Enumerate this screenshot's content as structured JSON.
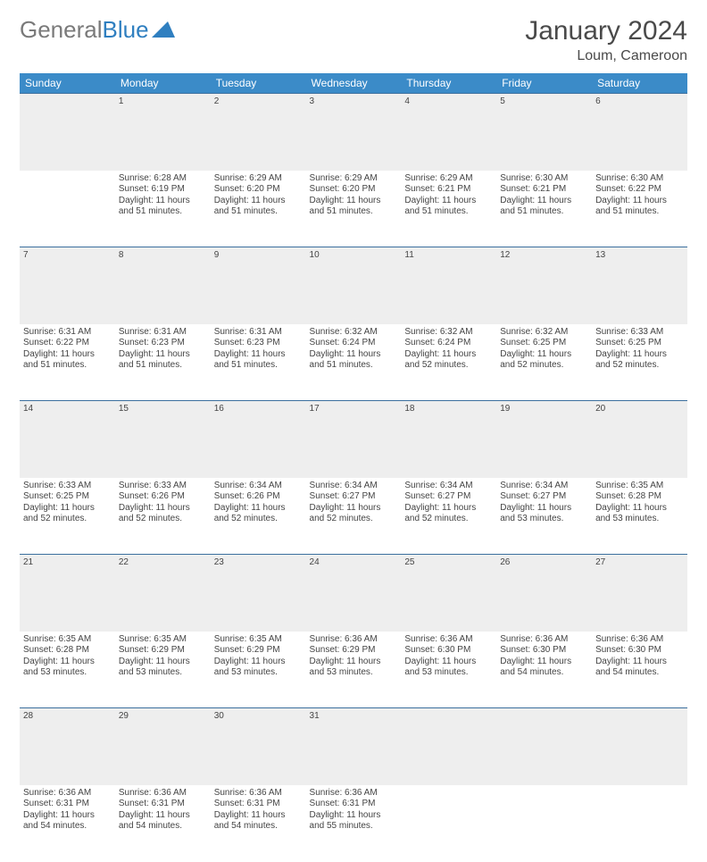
{
  "logo": {
    "text1": "General",
    "text2": "Blue"
  },
  "title": "January 2024",
  "location": "Loum, Cameroon",
  "colors": {
    "header_bg": "#3b8bc8",
    "header_text": "#ffffff",
    "daynum_bg": "#eeeeee",
    "border": "#3b6f9e",
    "logo_gray": "#7a7a7a",
    "logo_blue": "#2f7fc0"
  },
  "weekdays": [
    "Sunday",
    "Monday",
    "Tuesday",
    "Wednesday",
    "Thursday",
    "Friday",
    "Saturday"
  ],
  "weeks": [
    {
      "nums": [
        "",
        "1",
        "2",
        "3",
        "4",
        "5",
        "6"
      ],
      "cells": [
        null,
        {
          "sunrise": "Sunrise: 6:28 AM",
          "sunset": "Sunset: 6:19 PM",
          "d1": "Daylight: 11 hours",
          "d2": "and 51 minutes."
        },
        {
          "sunrise": "Sunrise: 6:29 AM",
          "sunset": "Sunset: 6:20 PM",
          "d1": "Daylight: 11 hours",
          "d2": "and 51 minutes."
        },
        {
          "sunrise": "Sunrise: 6:29 AM",
          "sunset": "Sunset: 6:20 PM",
          "d1": "Daylight: 11 hours",
          "d2": "and 51 minutes."
        },
        {
          "sunrise": "Sunrise: 6:29 AM",
          "sunset": "Sunset: 6:21 PM",
          "d1": "Daylight: 11 hours",
          "d2": "and 51 minutes."
        },
        {
          "sunrise": "Sunrise: 6:30 AM",
          "sunset": "Sunset: 6:21 PM",
          "d1": "Daylight: 11 hours",
          "d2": "and 51 minutes."
        },
        {
          "sunrise": "Sunrise: 6:30 AM",
          "sunset": "Sunset: 6:22 PM",
          "d1": "Daylight: 11 hours",
          "d2": "and 51 minutes."
        }
      ]
    },
    {
      "nums": [
        "7",
        "8",
        "9",
        "10",
        "11",
        "12",
        "13"
      ],
      "cells": [
        {
          "sunrise": "Sunrise: 6:31 AM",
          "sunset": "Sunset: 6:22 PM",
          "d1": "Daylight: 11 hours",
          "d2": "and 51 minutes."
        },
        {
          "sunrise": "Sunrise: 6:31 AM",
          "sunset": "Sunset: 6:23 PM",
          "d1": "Daylight: 11 hours",
          "d2": "and 51 minutes."
        },
        {
          "sunrise": "Sunrise: 6:31 AM",
          "sunset": "Sunset: 6:23 PM",
          "d1": "Daylight: 11 hours",
          "d2": "and 51 minutes."
        },
        {
          "sunrise": "Sunrise: 6:32 AM",
          "sunset": "Sunset: 6:24 PM",
          "d1": "Daylight: 11 hours",
          "d2": "and 51 minutes."
        },
        {
          "sunrise": "Sunrise: 6:32 AM",
          "sunset": "Sunset: 6:24 PM",
          "d1": "Daylight: 11 hours",
          "d2": "and 52 minutes."
        },
        {
          "sunrise": "Sunrise: 6:32 AM",
          "sunset": "Sunset: 6:25 PM",
          "d1": "Daylight: 11 hours",
          "d2": "and 52 minutes."
        },
        {
          "sunrise": "Sunrise: 6:33 AM",
          "sunset": "Sunset: 6:25 PM",
          "d1": "Daylight: 11 hours",
          "d2": "and 52 minutes."
        }
      ]
    },
    {
      "nums": [
        "14",
        "15",
        "16",
        "17",
        "18",
        "19",
        "20"
      ],
      "cells": [
        {
          "sunrise": "Sunrise: 6:33 AM",
          "sunset": "Sunset: 6:25 PM",
          "d1": "Daylight: 11 hours",
          "d2": "and 52 minutes."
        },
        {
          "sunrise": "Sunrise: 6:33 AM",
          "sunset": "Sunset: 6:26 PM",
          "d1": "Daylight: 11 hours",
          "d2": "and 52 minutes."
        },
        {
          "sunrise": "Sunrise: 6:34 AM",
          "sunset": "Sunset: 6:26 PM",
          "d1": "Daylight: 11 hours",
          "d2": "and 52 minutes."
        },
        {
          "sunrise": "Sunrise: 6:34 AM",
          "sunset": "Sunset: 6:27 PM",
          "d1": "Daylight: 11 hours",
          "d2": "and 52 minutes."
        },
        {
          "sunrise": "Sunrise: 6:34 AM",
          "sunset": "Sunset: 6:27 PM",
          "d1": "Daylight: 11 hours",
          "d2": "and 52 minutes."
        },
        {
          "sunrise": "Sunrise: 6:34 AM",
          "sunset": "Sunset: 6:27 PM",
          "d1": "Daylight: 11 hours",
          "d2": "and 53 minutes."
        },
        {
          "sunrise": "Sunrise: 6:35 AM",
          "sunset": "Sunset: 6:28 PM",
          "d1": "Daylight: 11 hours",
          "d2": "and 53 minutes."
        }
      ]
    },
    {
      "nums": [
        "21",
        "22",
        "23",
        "24",
        "25",
        "26",
        "27"
      ],
      "cells": [
        {
          "sunrise": "Sunrise: 6:35 AM",
          "sunset": "Sunset: 6:28 PM",
          "d1": "Daylight: 11 hours",
          "d2": "and 53 minutes."
        },
        {
          "sunrise": "Sunrise: 6:35 AM",
          "sunset": "Sunset: 6:29 PM",
          "d1": "Daylight: 11 hours",
          "d2": "and 53 minutes."
        },
        {
          "sunrise": "Sunrise: 6:35 AM",
          "sunset": "Sunset: 6:29 PM",
          "d1": "Daylight: 11 hours",
          "d2": "and 53 minutes."
        },
        {
          "sunrise": "Sunrise: 6:36 AM",
          "sunset": "Sunset: 6:29 PM",
          "d1": "Daylight: 11 hours",
          "d2": "and 53 minutes."
        },
        {
          "sunrise": "Sunrise: 6:36 AM",
          "sunset": "Sunset: 6:30 PM",
          "d1": "Daylight: 11 hours",
          "d2": "and 53 minutes."
        },
        {
          "sunrise": "Sunrise: 6:36 AM",
          "sunset": "Sunset: 6:30 PM",
          "d1": "Daylight: 11 hours",
          "d2": "and 54 minutes."
        },
        {
          "sunrise": "Sunrise: 6:36 AM",
          "sunset": "Sunset: 6:30 PM",
          "d1": "Daylight: 11 hours",
          "d2": "and 54 minutes."
        }
      ]
    },
    {
      "nums": [
        "28",
        "29",
        "30",
        "31",
        "",
        "",
        ""
      ],
      "cells": [
        {
          "sunrise": "Sunrise: 6:36 AM",
          "sunset": "Sunset: 6:31 PM",
          "d1": "Daylight: 11 hours",
          "d2": "and 54 minutes."
        },
        {
          "sunrise": "Sunrise: 6:36 AM",
          "sunset": "Sunset: 6:31 PM",
          "d1": "Daylight: 11 hours",
          "d2": "and 54 minutes."
        },
        {
          "sunrise": "Sunrise: 6:36 AM",
          "sunset": "Sunset: 6:31 PM",
          "d1": "Daylight: 11 hours",
          "d2": "and 54 minutes."
        },
        {
          "sunrise": "Sunrise: 6:36 AM",
          "sunset": "Sunset: 6:31 PM",
          "d1": "Daylight: 11 hours",
          "d2": "and 55 minutes."
        },
        null,
        null,
        null
      ]
    }
  ]
}
